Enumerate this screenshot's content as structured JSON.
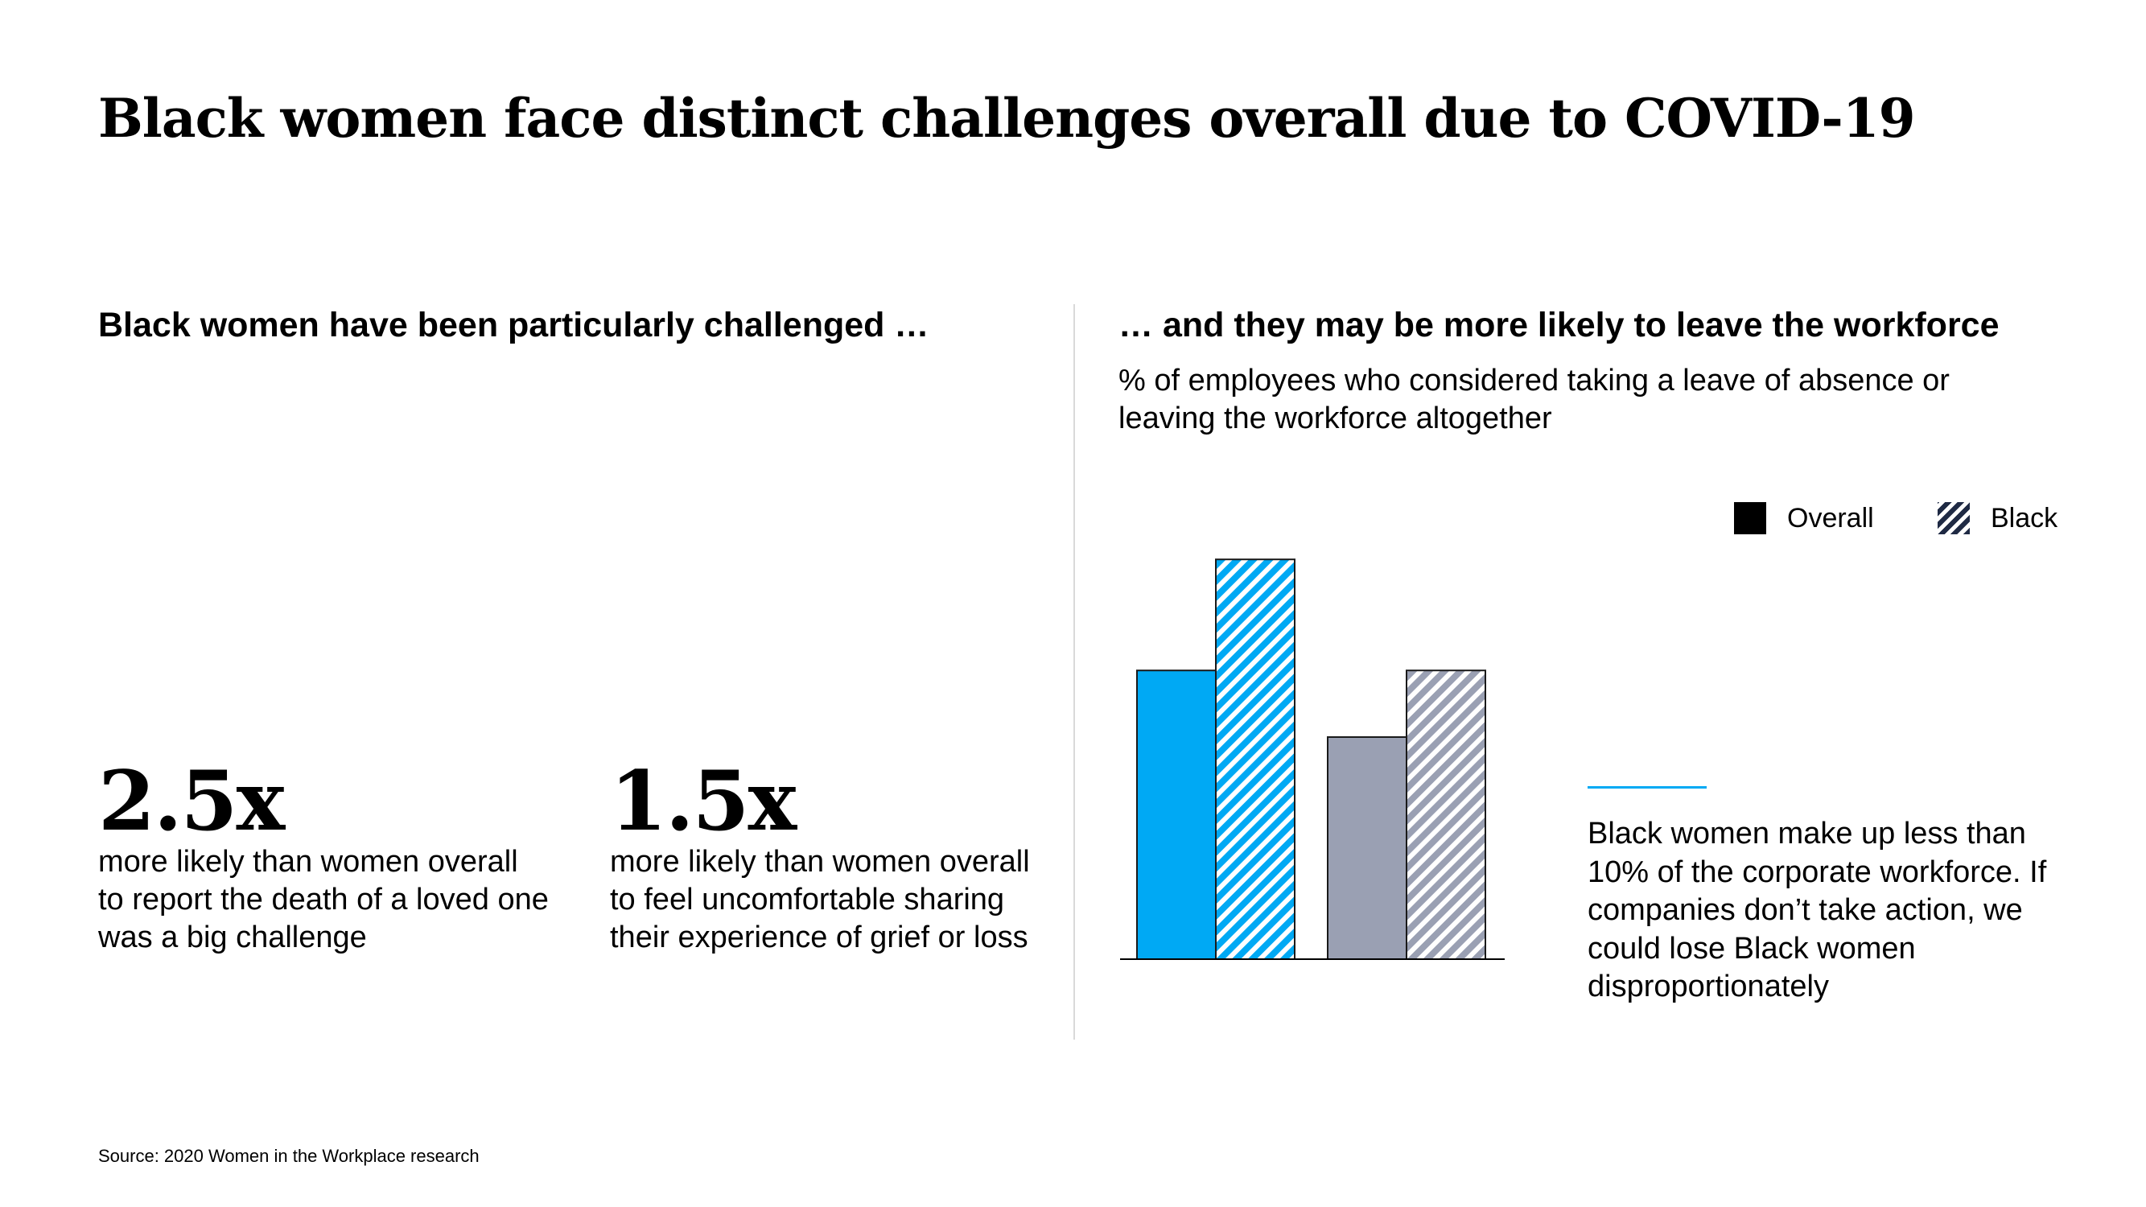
{
  "title": "Black women face distinct challenges overall due to COVID-19",
  "left": {
    "heading": "Black women have been particularly challenged …",
    "stats": [
      {
        "value": "2.5x",
        "text": "more likely than women overall to report the death of a loved one was a big challenge"
      },
      {
        "value": "1.5x",
        "text": "more likely than women overall to feel uncomfortable sharing their experience of grief or loss"
      }
    ]
  },
  "right": {
    "heading": "… and they may be more likely to leave the workforce",
    "subtitle": "% of employees who considered taking a leave of absence or leaving the workforce altogether",
    "callout": "Black women make up less than 10% of the corporate workforce. If companies don’t take action, we could lose Black women disproportionately"
  },
  "source": "Source: 2020 Women in the Workplace research",
  "chart_data": {
    "type": "bar",
    "title": "",
    "xlabel": "",
    "ylabel": "",
    "axis_labels_visible": false,
    "grid": false,
    "legend_position": "top-right",
    "ylim": [
      0,
      100
    ],
    "groups": 2,
    "legend": [
      {
        "label": "Overall",
        "style": "solid",
        "color": "#000000"
      },
      {
        "label": "Black",
        "style": "hatched",
        "color": "#1f2a44"
      }
    ],
    "series": [
      {
        "name": "Overall",
        "values": [
          65,
          50
        ],
        "colors": [
          "#00a9f4",
          "#9aa0b3"
        ],
        "style": "solid"
      },
      {
        "name": "Black",
        "values": [
          90,
          65
        ],
        "colors": [
          "#00a9f4",
          "#9aa0b3"
        ],
        "style": "hatched"
      }
    ]
  }
}
